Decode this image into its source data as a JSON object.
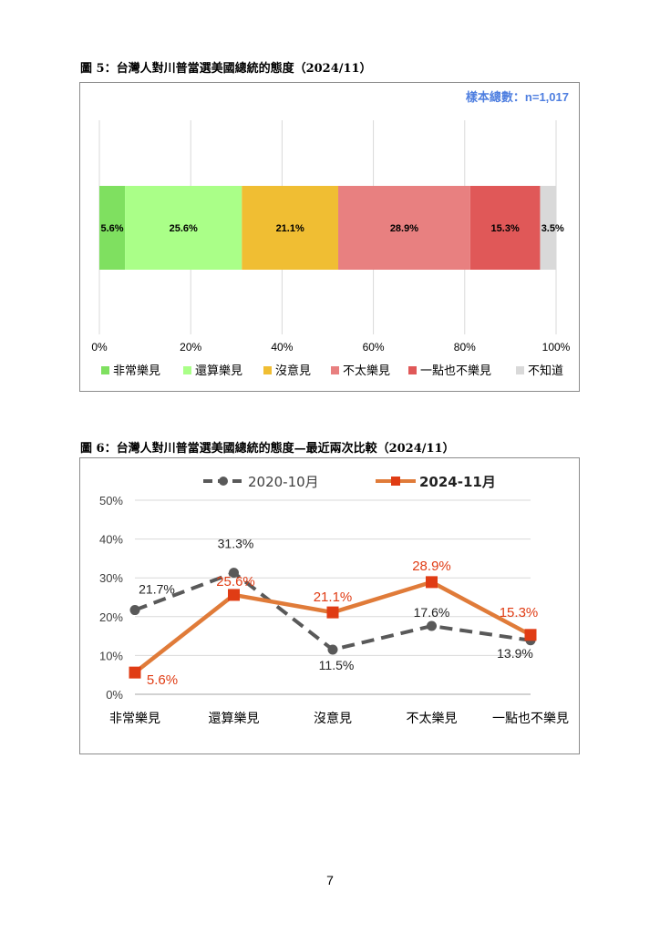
{
  "figure5": {
    "caption": "圖 5：台灣人對川普當選美國總統的態度（2024/11）",
    "sample_note": "樣本總數：n=1,017",
    "colors": [
      "#7fe060",
      "#aaff88",
      "#f0be33",
      "#e88080",
      "#e05858",
      "#d9d9d9"
    ]
  },
  "figure6": {
    "caption": "圖 6：台灣人對川普當選美國總統的態度—最近兩次比較（2024/11）",
    "colors": {
      "2020-10月": "#595959",
      "2024-11月": "#e07b39"
    },
    "marker_colors": {
      "2024-11月": "#e03c14"
    }
  },
  "page_number": "7",
  "chart_data": [
    {
      "type": "bar",
      "orientation": "horizontal-stacked",
      "categories": [
        "非常樂見",
        "還算樂見",
        "沒意見",
        "不太樂見",
        "一點也不樂見",
        "不知道"
      ],
      "values": [
        5.6,
        25.6,
        21.1,
        28.9,
        15.3,
        3.5
      ],
      "value_labels": [
        "5.6%",
        "25.6%",
        "21.1%",
        "28.9%",
        "15.3%",
        "3.5%"
      ],
      "xlim": [
        0,
        100
      ],
      "x_ticks": [
        "0%",
        "20%",
        "40%",
        "60%",
        "80%",
        "100%"
      ],
      "grid": true,
      "legend": "bottom"
    },
    {
      "type": "line",
      "categories": [
        "非常樂見",
        "還算樂見",
        "沒意見",
        "不太樂見",
        "一點也不樂見"
      ],
      "series": [
        {
          "name": "2020-10月",
          "values": [
            21.7,
            31.3,
            11.5,
            17.6,
            13.9
          ],
          "labels": [
            "21.7%",
            "31.3%",
            "11.5%",
            "17.6%",
            "13.9%"
          ],
          "style": "dashed"
        },
        {
          "name": "2024-11月",
          "values": [
            5.6,
            25.6,
            21.1,
            28.9,
            15.3
          ],
          "labels": [
            "5.6%",
            "25.6%",
            "21.1%",
            "28.9%",
            "15.3%"
          ],
          "style": "solid"
        }
      ],
      "ylim": [
        0,
        50
      ],
      "y_ticks": [
        "0%",
        "10%",
        "20%",
        "30%",
        "40%",
        "50%"
      ],
      "grid": true,
      "legend": "top"
    }
  ]
}
